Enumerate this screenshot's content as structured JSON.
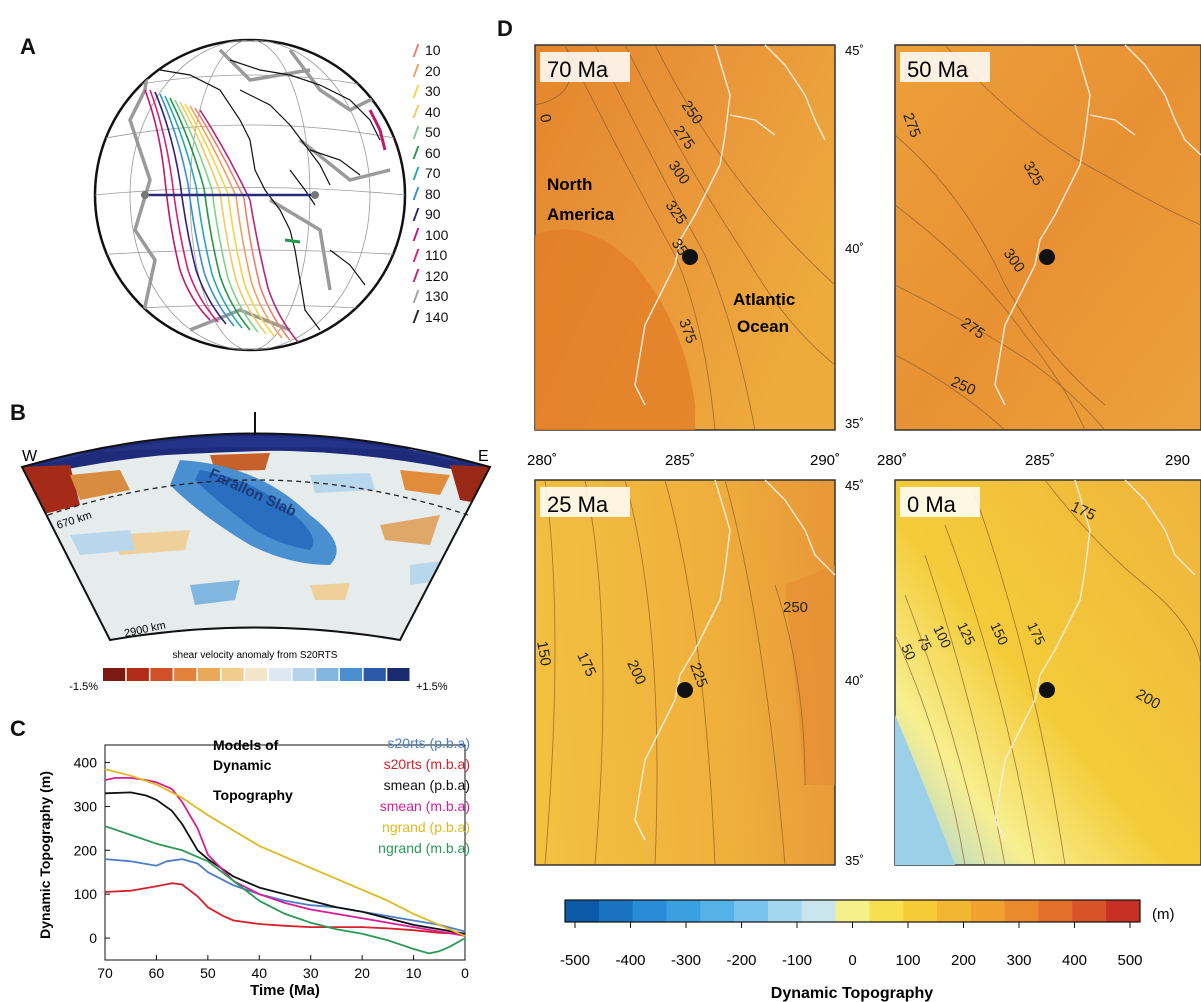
{
  "panels": {
    "a": {
      "letter": "A"
    },
    "b": {
      "letter": "B"
    },
    "c": {
      "letter": "C"
    },
    "d": {
      "letter": "D"
    }
  },
  "legend_a": {
    "items": [
      {
        "label": "10",
        "color": "#e8826f"
      },
      {
        "label": "20",
        "color": "#f2a060"
      },
      {
        "label": "30",
        "color": "#f2d640"
      },
      {
        "label": "40",
        "color": "#f6c85f"
      },
      {
        "label": "50",
        "color": "#7ed38a"
      },
      {
        "label": "60",
        "color": "#229944"
      },
      {
        "label": "70",
        "color": "#22aab0"
      },
      {
        "label": "80",
        "color": "#3a8fd0"
      },
      {
        "label": "90",
        "color": "#332277"
      },
      {
        "label": "100",
        "color": "#c0186e"
      },
      {
        "label": "110",
        "color": "#d8207a"
      },
      {
        "label": "120",
        "color": "#b82678"
      },
      {
        "label": "130",
        "color": "#a0a0a0"
      },
      {
        "label": "140",
        "color": "#222222"
      }
    ]
  },
  "section_b": {
    "west": "W",
    "east": "E",
    "depth_670": "670 km",
    "depth_2900": "2900 km",
    "slab_label": "Farallon Slab",
    "scale_title": "shear velocity anomaly from S20RTS",
    "scale_min": "-1.5%",
    "scale_max": "+1.5%",
    "scale_colors": [
      "#7a1a10",
      "#b22a18",
      "#d0502a",
      "#e0823a",
      "#eaa85a",
      "#f0cd8c",
      "#f3e6c8",
      "#dde8f0",
      "#b5d3ea",
      "#80b6e0",
      "#4a8ed0",
      "#2a5aa8",
      "#1a2a70"
    ]
  },
  "chart_data": [
    {
      "type": "line",
      "title": "Models of Dynamic Topography",
      "xlabel": "Time (Ma)",
      "ylabel": "Dynamic Topography (m)",
      "xlim": [
        70,
        0
      ],
      "ylim": [
        -50,
        440
      ],
      "xticks": [
        70,
        60,
        50,
        40,
        30,
        20,
        10,
        0
      ],
      "yticks": [
        0,
        100,
        200,
        300,
        400
      ],
      "series": [
        {
          "name": "s20rts (p.b.a)",
          "color": "#4a7fc8",
          "x": [
            70,
            65,
            60,
            58,
            55,
            52,
            50,
            45,
            40,
            35,
            30,
            25,
            20,
            15,
            10,
            5,
            0
          ],
          "y": [
            180,
            175,
            165,
            175,
            180,
            170,
            150,
            120,
            100,
            85,
            75,
            70,
            60,
            50,
            40,
            30,
            15
          ]
        },
        {
          "name": "s20rts (m.b.a)",
          "color": "#d8202a",
          "x": [
            70,
            65,
            60,
            57,
            55,
            52,
            50,
            47,
            45,
            40,
            35,
            30,
            25,
            20,
            15,
            10,
            5,
            0
          ],
          "y": [
            105,
            108,
            118,
            125,
            122,
            95,
            70,
            50,
            40,
            32,
            28,
            25,
            25,
            25,
            22,
            18,
            12,
            10
          ]
        },
        {
          "name": "smean (p.b.a)",
          "color": "#111111",
          "x": [
            70,
            65,
            62,
            60,
            57,
            55,
            52,
            50,
            45,
            40,
            35,
            30,
            25,
            20,
            15,
            10,
            5,
            0
          ],
          "y": [
            330,
            332,
            325,
            315,
            290,
            260,
            200,
            180,
            140,
            115,
            100,
            85,
            70,
            60,
            45,
            30,
            20,
            10
          ]
        },
        {
          "name": "smean (m.b.a)",
          "color": "#d61d9a",
          "x": [
            70,
            68,
            65,
            62,
            60,
            57,
            55,
            52,
            50,
            45,
            40,
            35,
            30,
            25,
            20,
            15,
            10,
            5,
            0
          ],
          "y": [
            360,
            365,
            365,
            360,
            355,
            340,
            310,
            250,
            190,
            130,
            100,
            80,
            65,
            55,
            45,
            35,
            25,
            15,
            5
          ]
        },
        {
          "name": "ngrand (p.b.a)",
          "color": "#e0b820",
          "x": [
            70,
            65,
            60,
            55,
            50,
            45,
            40,
            35,
            30,
            25,
            20,
            15,
            10,
            5,
            0
          ],
          "y": [
            385,
            370,
            350,
            320,
            280,
            245,
            210,
            185,
            160,
            135,
            110,
            85,
            55,
            30,
            5
          ]
        },
        {
          "name": "ngrand (m.b.a)",
          "color": "#2a9a55",
          "x": [
            70,
            65,
            60,
            55,
            50,
            45,
            40,
            35,
            30,
            25,
            20,
            15,
            10,
            7,
            5,
            3,
            0
          ],
          "y": [
            255,
            235,
            215,
            200,
            175,
            130,
            85,
            55,
            35,
            20,
            10,
            -5,
            -25,
            -35,
            -30,
            -20,
            0
          ]
        }
      ]
    }
  ],
  "maps": [
    {
      "age": "70 Ma",
      "contours": [
        "250",
        "275",
        "300",
        "325",
        "35",
        "375",
        "0"
      ],
      "region_labels": [
        "North\nAmerica",
        "Atlantic\nOcean"
      ]
    },
    {
      "age": "50 Ma",
      "contours": [
        "275",
        "325",
        "300",
        "275",
        "250"
      ]
    },
    {
      "age": "25 Ma",
      "contours": [
        "150",
        "175",
        "200",
        "225",
        "250"
      ]
    },
    {
      "age": "0 Ma",
      "contours": [
        "50",
        "75",
        "100",
        "125",
        "150",
        "175",
        "175",
        "200"
      ]
    }
  ],
  "map_axes": {
    "lat_labels": [
      "45˚",
      "40˚",
      "35˚"
    ],
    "lon_labels": [
      "280˚",
      "285˚",
      "290˚"
    ],
    "lon_labels_right": [
      "280˚",
      "285˚",
      "290"
    ]
  },
  "colorbar_d": {
    "ticks": [
      "-500",
      "-400",
      "-300",
      "-200",
      "-100",
      "0",
      "100",
      "200",
      "300",
      "400",
      "500"
    ],
    "unit": "(m)",
    "title": "Dynamic Topography",
    "colors": [
      "#0a5aa8",
      "#1a73c0",
      "#2a8cd8",
      "#3aa0e0",
      "#55b2e8",
      "#78c4ee",
      "#a4d6f0",
      "#c9e6ee",
      "#f6f08a",
      "#f6e050",
      "#f5cc38",
      "#f3b630",
      "#efa22e",
      "#ea8a2c",
      "#e2702a",
      "#d85428",
      "#c83026"
    ]
  },
  "colors": {
    "map_orange_light": "#f0b63e",
    "map_orange_mid": "#eca43a",
    "map_orange_dark": "#e48b2e",
    "coastline": "#f8ecdf"
  }
}
